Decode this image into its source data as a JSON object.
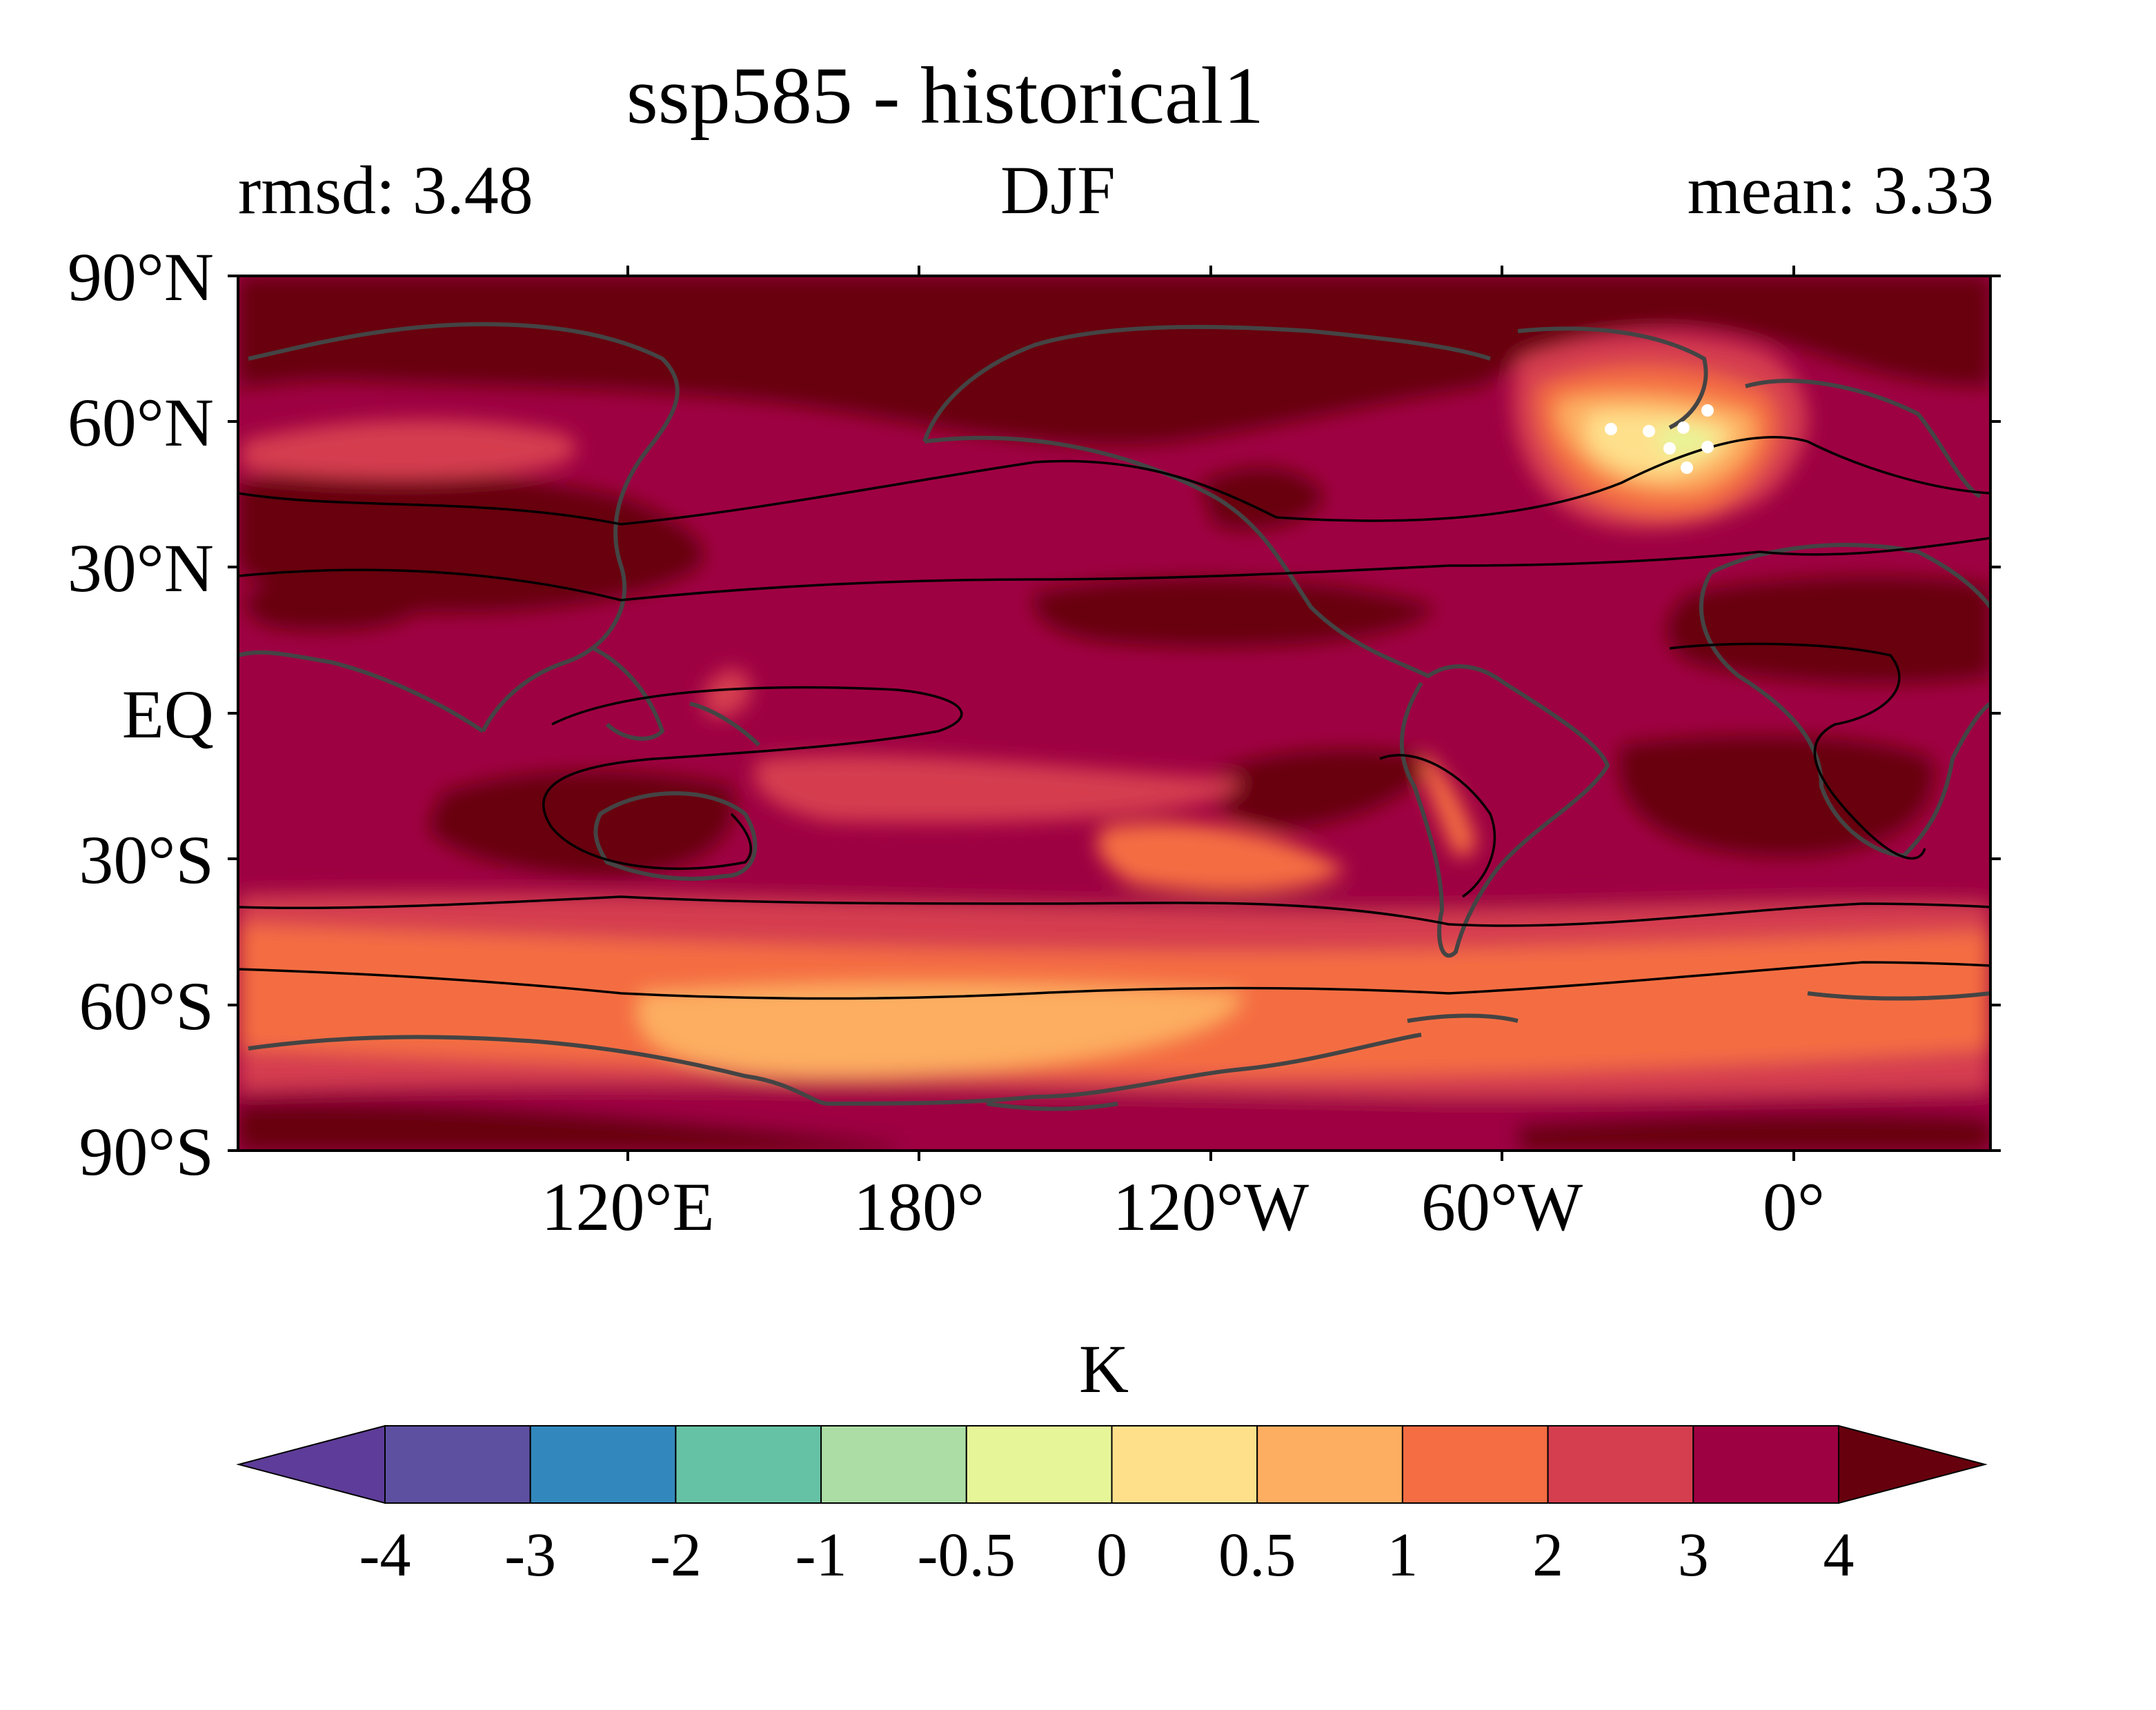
{
  "title": "ssp585 - historical1",
  "subtitle_left": "rmsd: 3.48",
  "subtitle_center": "DJF",
  "subtitle_right": "mean: 3.33",
  "lat_labels": [
    "90°N",
    "60°N",
    "30°N",
    "EQ",
    "30°S",
    "60°S",
    "90°S"
  ],
  "lon_labels": [
    "120°E",
    "180°",
    "120°W",
    "60°W",
    "0°"
  ],
  "colorbar": {
    "unit": "K",
    "tick_labels": [
      "-4",
      "-3",
      "-2",
      "-1",
      "-0.5",
      "0",
      "0.5",
      "1",
      "2",
      "3",
      "4"
    ],
    "colors": [
      "#5e3c99",
      "#5e50a1",
      "#3288bd",
      "#66c2a5",
      "#abdda4",
      "#e6f598",
      "#fee08b",
      "#fdae61",
      "#f46d43",
      "#d53e4f",
      "#9e0142",
      "#67000d"
    ]
  },
  "chart_data": {
    "type": "heatmap",
    "title": "ssp585 - historical1",
    "season": "DJF",
    "rmsd": 3.48,
    "mean": 3.33,
    "unit": "K",
    "levels": [
      -4,
      -3,
      -2,
      -1,
      -0.5,
      0,
      0.5,
      1,
      2,
      3,
      4
    ],
    "lat_range": [
      -90,
      90
    ],
    "lon_range": [
      60,
      420
    ]
  }
}
